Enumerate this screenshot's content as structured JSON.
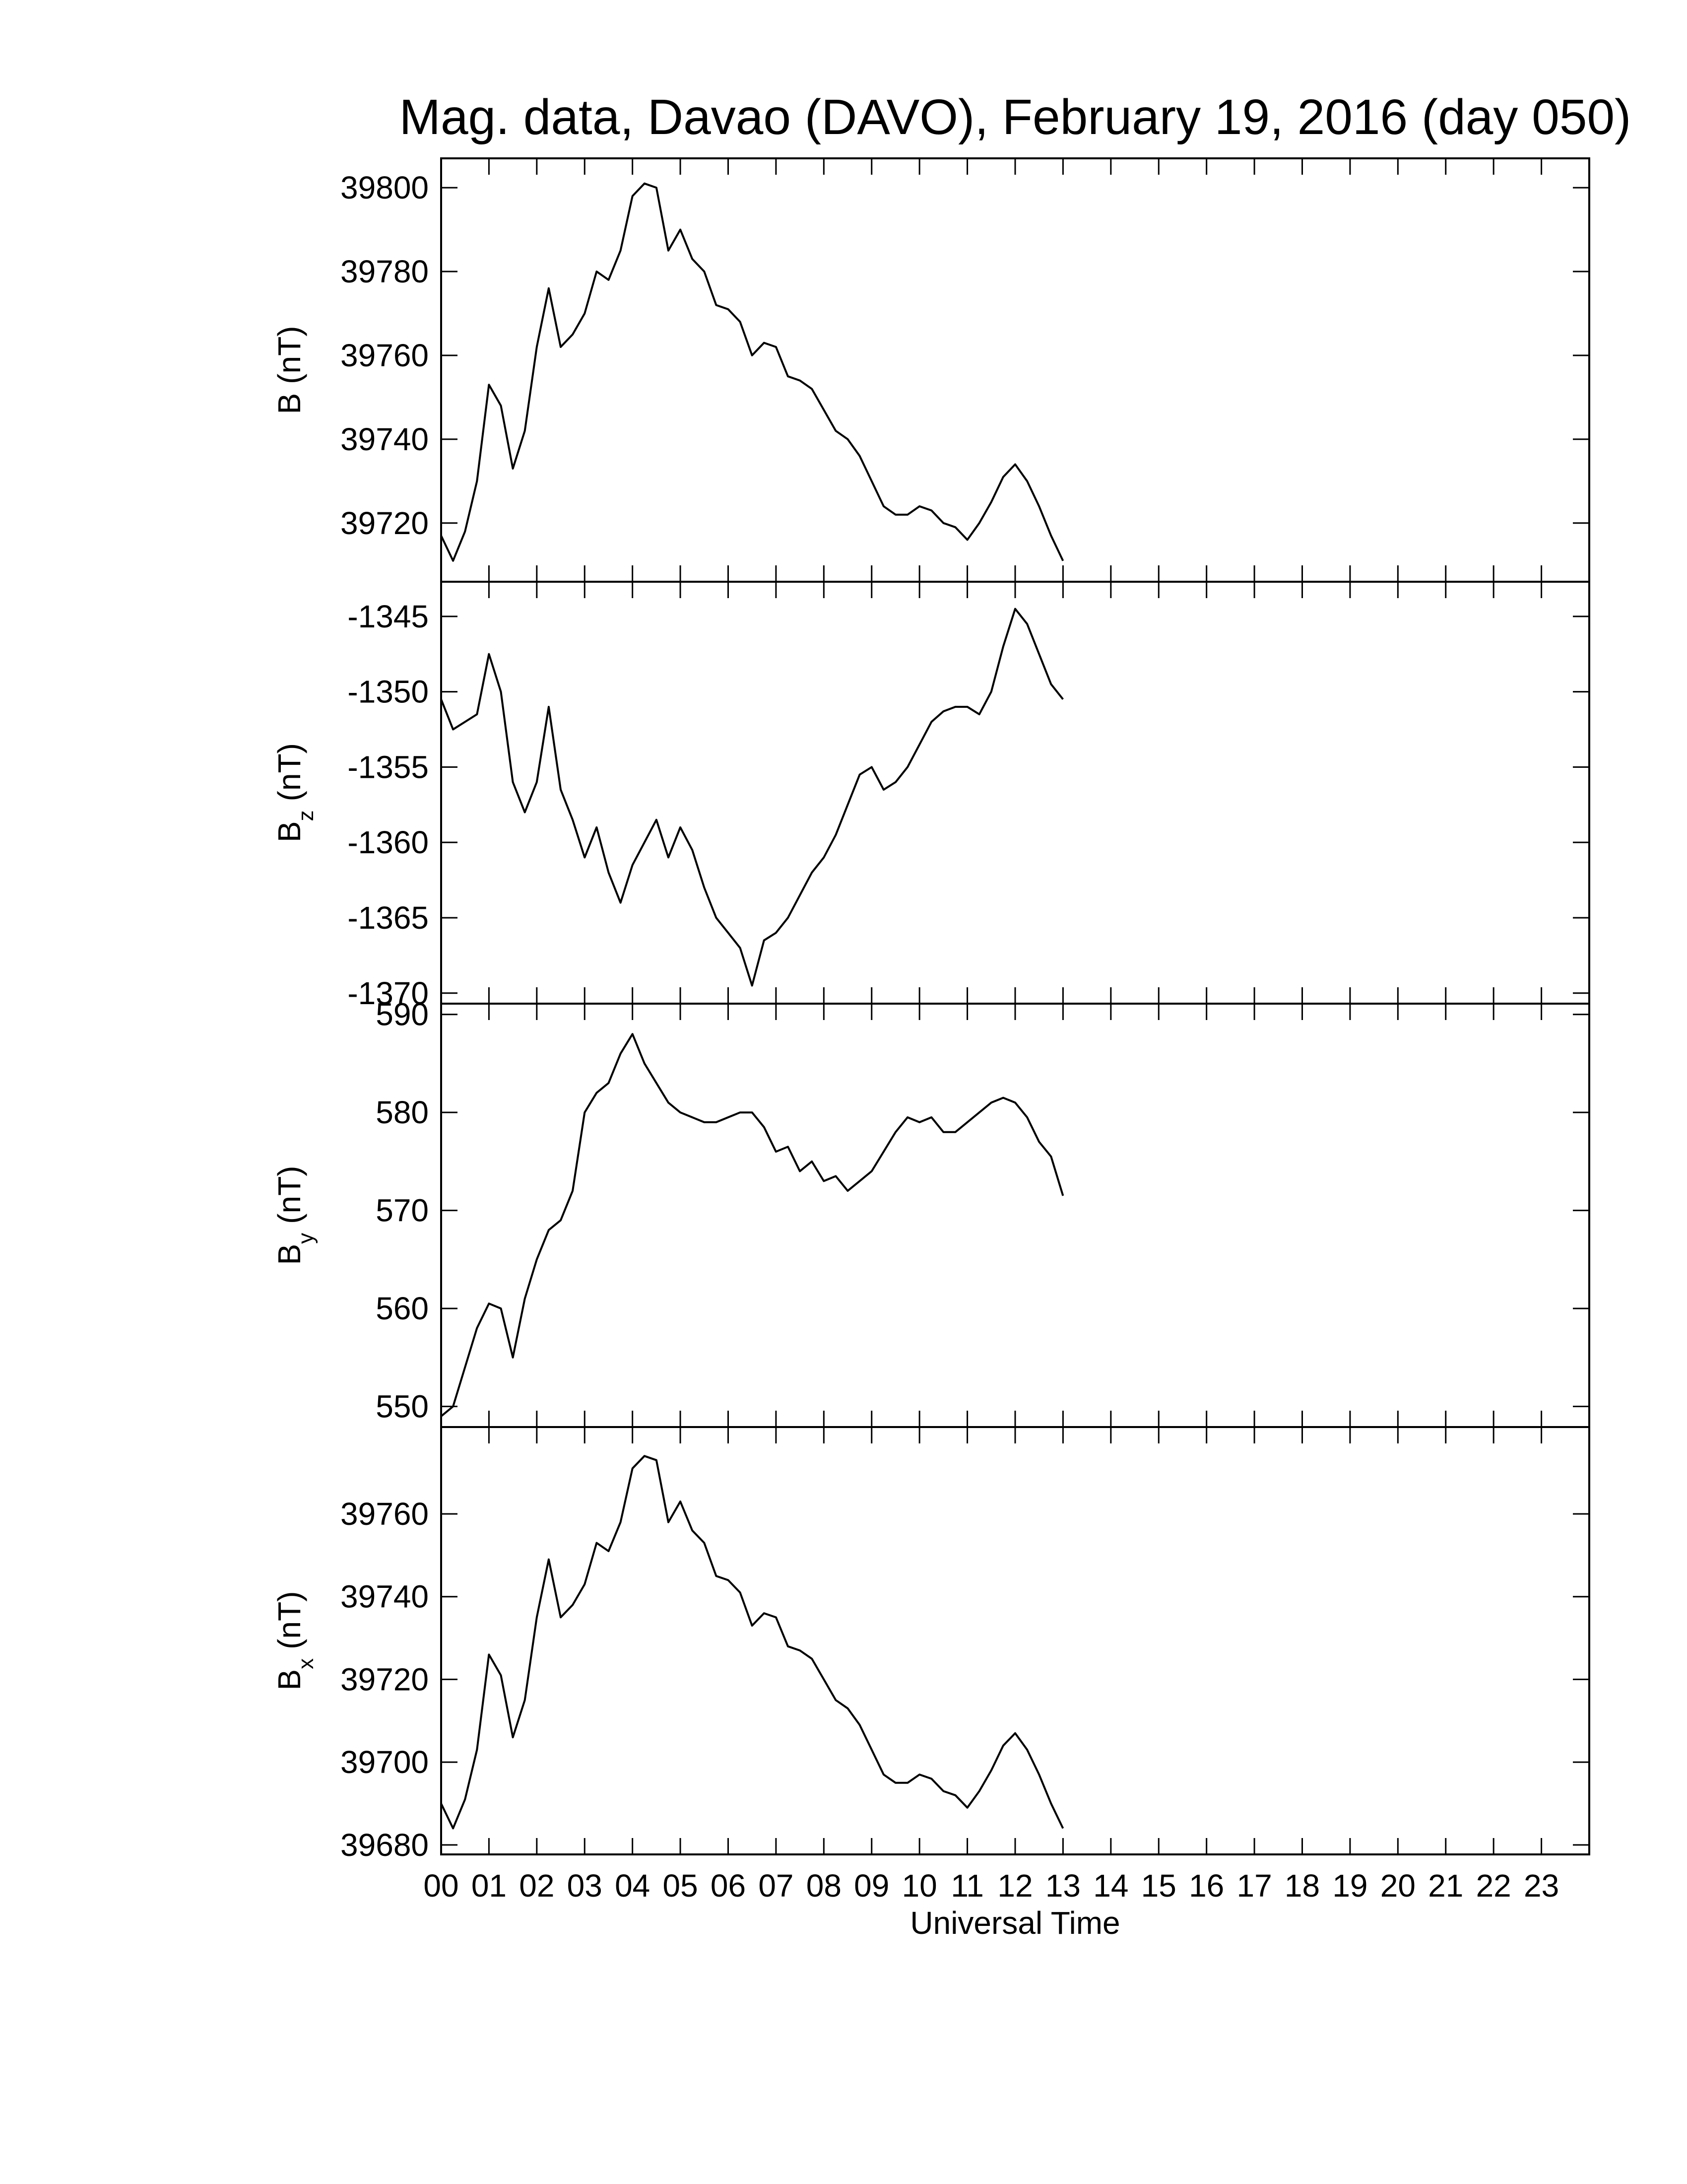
{
  "chart_data": [
    {
      "type": "line",
      "title": "Mag. data, Davao (DAVO), February 19, 2016 (day 050)",
      "ylabel": {
        "symbol": "B",
        "unit": "(nT)"
      },
      "xlim": [
        0,
        24
      ],
      "xticks": [
        0,
        1,
        2,
        3,
        4,
        5,
        6,
        7,
        8,
        9,
        10,
        11,
        12,
        13,
        14,
        15,
        16,
        17,
        18,
        19,
        20,
        21,
        22,
        23
      ],
      "ylim": [
        39706,
        39807
      ],
      "yticks": [
        39720,
        39740,
        39760,
        39780,
        39800
      ],
      "color": "#000000",
      "x": [
        0,
        0.25,
        0.5,
        0.75,
        1,
        1.25,
        1.5,
        1.75,
        2,
        2.25,
        2.5,
        2.75,
        3,
        3.25,
        3.5,
        3.75,
        4,
        4.25,
        4.5,
        4.75,
        5,
        5.25,
        5.5,
        5.75,
        6,
        6.25,
        6.5,
        6.75,
        7,
        7.25,
        7.5,
        7.75,
        8,
        8.25,
        8.5,
        8.75,
        9,
        9.25,
        9.5,
        9.75,
        10,
        10.25,
        10.5,
        10.75,
        11,
        11.25,
        11.5,
        11.75,
        12,
        12.25,
        12.5,
        12.75,
        13
      ],
      "values": [
        39717,
        39711,
        39718,
        39730,
        39753,
        39748,
        39733,
        39742,
        39762,
        39776,
        39762,
        39765,
        39770,
        39780,
        39778,
        39785,
        39798,
        39801,
        39800,
        39785,
        39790,
        39783,
        39780,
        39772,
        39771,
        39768,
        39760,
        39763,
        39762,
        39755,
        39754,
        39752,
        39747,
        39742,
        39740,
        39736,
        39730,
        39724,
        39722,
        39722,
        39724,
        39723,
        39720,
        39719,
        39716,
        39720,
        39725,
        39731,
        39734,
        39730,
        39724,
        39717,
        39711
      ]
    },
    {
      "type": "line",
      "ylabel": {
        "symbol": "B",
        "subscript": "z",
        "unit": "(nT)"
      },
      "xlim": [
        0,
        24
      ],
      "xticks": [
        0,
        1,
        2,
        3,
        4,
        5,
        6,
        7,
        8,
        9,
        10,
        11,
        12,
        13,
        14,
        15,
        16,
        17,
        18,
        19,
        20,
        21,
        22,
        23
      ],
      "ylim": [
        -1370.7,
        -1342.7
      ],
      "yticks": [
        -1370,
        -1365,
        -1360,
        -1355,
        -1350,
        -1345
      ],
      "color": "#000000",
      "x": [
        0,
        0.25,
        0.5,
        0.75,
        1,
        1.25,
        1.5,
        1.75,
        2,
        2.25,
        2.5,
        2.75,
        3,
        3.25,
        3.5,
        3.75,
        4,
        4.25,
        4.5,
        4.75,
        5,
        5.25,
        5.5,
        5.75,
        6,
        6.25,
        6.5,
        6.75,
        7,
        7.25,
        7.5,
        7.75,
        8,
        8.25,
        8.5,
        8.75,
        9,
        9.25,
        9.5,
        9.75,
        10,
        10.25,
        10.5,
        10.75,
        11,
        11.25,
        11.5,
        11.75,
        12,
        12.25,
        12.5,
        12.75,
        13
      ],
      "values": [
        -1350.5,
        -1352.5,
        -1352,
        -1351.5,
        -1347.5,
        -1350,
        -1356,
        -1358,
        -1356,
        -1351,
        -1356.5,
        -1358.5,
        -1361,
        -1359,
        -1362,
        -1364,
        -1361.5,
        -1360,
        -1358.5,
        -1361,
        -1359,
        -1360.5,
        -1363,
        -1365,
        -1366,
        -1367,
        -1369.5,
        -1366.5,
        -1366,
        -1365,
        -1363.5,
        -1362,
        -1361,
        -1359.5,
        -1357.5,
        -1355.5,
        -1355,
        -1356.5,
        -1356,
        -1355,
        -1353.5,
        -1352,
        -1351.3,
        -1351,
        -1351,
        -1351.5,
        -1350,
        -1347,
        -1344.5,
        -1345.5,
        -1347.5,
        -1349.5,
        -1350.5
      ]
    },
    {
      "type": "line",
      "ylabel": {
        "symbol": "B",
        "subscript": "y",
        "unit": "(nT)"
      },
      "xlim": [
        0,
        24
      ],
      "xticks": [
        0,
        1,
        2,
        3,
        4,
        5,
        6,
        7,
        8,
        9,
        10,
        11,
        12,
        13,
        14,
        15,
        16,
        17,
        18,
        19,
        20,
        21,
        22,
        23
      ],
      "ylim": [
        547.9,
        591.1
      ],
      "yticks": [
        550,
        560,
        570,
        580,
        590
      ],
      "color": "#000000",
      "x": [
        0,
        0.25,
        0.5,
        0.75,
        1,
        1.25,
        1.5,
        1.75,
        2,
        2.25,
        2.5,
        2.75,
        3,
        3.25,
        3.5,
        3.75,
        4,
        4.25,
        4.5,
        4.75,
        5,
        5.25,
        5.5,
        5.75,
        6,
        6.25,
        6.5,
        6.75,
        7,
        7.25,
        7.5,
        7.75,
        8,
        8.25,
        8.5,
        8.75,
        9,
        9.25,
        9.5,
        9.75,
        10,
        10.25,
        10.5,
        10.75,
        11,
        11.25,
        11.5,
        11.75,
        12,
        12.25,
        12.5,
        12.75,
        13
      ],
      "values": [
        549,
        550,
        554,
        558,
        560.5,
        560,
        555,
        561,
        565,
        568,
        569,
        572,
        580,
        582,
        583,
        586,
        588,
        585,
        583,
        581,
        580,
        579.5,
        579,
        579,
        579.5,
        580,
        580,
        578.5,
        576,
        576.5,
        574,
        575,
        573,
        573.5,
        572,
        573,
        574,
        576,
        578,
        579.5,
        579,
        579.5,
        578,
        578,
        579,
        580,
        581,
        581.5,
        581,
        579.5,
        577,
        575.5,
        571.5
      ]
    },
    {
      "type": "line",
      "ylabel": {
        "symbol": "B",
        "subscript": "x",
        "unit": "(nT)"
      },
      "xlabel": "Universal Time",
      "xlim": [
        0,
        24
      ],
      "xticks": [
        {
          "value": 0,
          "label": "00"
        },
        {
          "value": 1,
          "label": "01"
        },
        {
          "value": 2,
          "label": "02"
        },
        {
          "value": 3,
          "label": "03"
        },
        {
          "value": 4,
          "label": "04"
        },
        {
          "value": 5,
          "label": "05"
        },
        {
          "value": 6,
          "label": "06"
        },
        {
          "value": 7,
          "label": "07"
        },
        {
          "value": 8,
          "label": "08"
        },
        {
          "value": 9,
          "label": "09"
        },
        {
          "value": 10,
          "label": "10"
        },
        {
          "value": 11,
          "label": "11"
        },
        {
          "value": 12,
          "label": "12"
        },
        {
          "value": 13,
          "label": "13"
        },
        {
          "value": 14,
          "label": "14"
        },
        {
          "value": 15,
          "label": "15"
        },
        {
          "value": 16,
          "label": "16"
        },
        {
          "value": 17,
          "label": "17"
        },
        {
          "value": 18,
          "label": "18"
        },
        {
          "value": 19,
          "label": "19"
        },
        {
          "value": 20,
          "label": "20"
        },
        {
          "value": 21,
          "label": "21"
        },
        {
          "value": 22,
          "label": "22"
        },
        {
          "value": 23,
          "label": "23"
        }
      ],
      "ylim": [
        39677.7,
        39781
      ],
      "yticks": [
        39680,
        39700,
        39720,
        39740,
        39760
      ],
      "color": "#000000",
      "x": [
        0,
        0.25,
        0.5,
        0.75,
        1,
        1.25,
        1.5,
        1.75,
        2,
        2.25,
        2.5,
        2.75,
        3,
        3.25,
        3.5,
        3.75,
        4,
        4.25,
        4.5,
        4.75,
        5,
        5.25,
        5.5,
        5.75,
        6,
        6.25,
        6.5,
        6.75,
        7,
        7.25,
        7.5,
        7.75,
        8,
        8.25,
        8.5,
        8.75,
        9,
        9.25,
        9.5,
        9.75,
        10,
        10.25,
        10.5,
        10.75,
        11,
        11.25,
        11.5,
        11.75,
        12,
        12.25,
        12.5,
        12.75,
        13
      ],
      "values": [
        39690,
        39684,
        39691,
        39703,
        39726,
        39721,
        39706,
        39715,
        39735,
        39749,
        39735,
        39738,
        39743,
        39753,
        39751,
        39758,
        39771,
        39774,
        39773,
        39758,
        39763,
        39756,
        39753,
        39745,
        39744,
        39741,
        39733,
        39736,
        39735,
        39728,
        39727,
        39725,
        39720,
        39715,
        39713,
        39709,
        39703,
        39697,
        39695,
        39695,
        39697,
        39696,
        39693,
        39692,
        39689,
        39693,
        39698,
        39704,
        39707,
        39703,
        39697,
        39690,
        39684
      ]
    }
  ]
}
